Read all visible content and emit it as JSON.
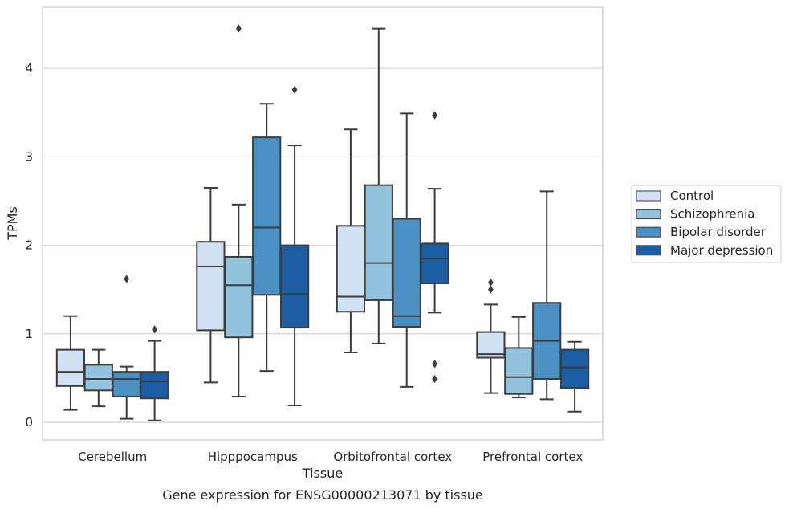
{
  "chart_data": {
    "type": "box",
    "xlabel": "Tissue",
    "ylabel": "TPMs",
    "caption": "Gene expression for ENSG00000213071 by tissue",
    "ylim": [
      -0.2,
      4.7
    ],
    "yticks": [
      0,
      1,
      2,
      3,
      4
    ],
    "grid": "horizontal",
    "legend_position": "right",
    "categories": [
      "Cerebellum",
      "Hipppocampus",
      "Orbitofrontal cortex",
      "Prefrontal cortex"
    ],
    "series": [
      {
        "name": "Control",
        "color": "#cfe1f2",
        "boxes": [
          {
            "whisker_low": 0.14,
            "q1": 0.41,
            "median": 0.57,
            "q3": 0.82,
            "whisker_high": 1.2,
            "outliers": []
          },
          {
            "whisker_low": 0.45,
            "q1": 1.04,
            "median": 1.76,
            "q3": 2.04,
            "whisker_high": 2.65,
            "outliers": []
          },
          {
            "whisker_low": 0.79,
            "q1": 1.25,
            "median": 1.42,
            "q3": 2.22,
            "whisker_high": 3.31,
            "outliers": []
          },
          {
            "whisker_low": 0.33,
            "q1": 0.73,
            "median": 0.77,
            "q3": 1.02,
            "whisker_high": 1.33,
            "outliers": [
              1.5,
              1.58
            ]
          }
        ]
      },
      {
        "name": "Schizophrenia",
        "color": "#93c4de",
        "boxes": [
          {
            "whisker_low": 0.18,
            "q1": 0.36,
            "median": 0.49,
            "q3": 0.65,
            "whisker_high": 0.82,
            "outliers": []
          },
          {
            "whisker_low": 0.29,
            "q1": 0.96,
            "median": 1.55,
            "q3": 1.87,
            "whisker_high": 2.46,
            "outliers": [
              4.45
            ]
          },
          {
            "whisker_low": 0.89,
            "q1": 1.38,
            "median": 1.8,
            "q3": 2.68,
            "whisker_high": 4.45,
            "outliers": []
          },
          {
            "whisker_low": 0.28,
            "q1": 0.32,
            "median": 0.51,
            "q3": 0.84,
            "whisker_high": 1.19,
            "outliers": []
          }
        ]
      },
      {
        "name": "Bipolar disorder",
        "color": "#4a90c2",
        "boxes": [
          {
            "whisker_low": 0.04,
            "q1": 0.29,
            "median": 0.49,
            "q3": 0.57,
            "whisker_high": 0.63,
            "outliers": [
              1.62
            ]
          },
          {
            "whisker_low": 0.58,
            "q1": 1.44,
            "median": 2.2,
            "q3": 3.22,
            "whisker_high": 3.6,
            "outliers": []
          },
          {
            "whisker_low": 0.4,
            "q1": 1.08,
            "median": 1.2,
            "q3": 2.3,
            "whisker_high": 3.49,
            "outliers": []
          },
          {
            "whisker_low": 0.26,
            "q1": 0.49,
            "median": 0.92,
            "q3": 1.35,
            "whisker_high": 2.61,
            "outliers": []
          }
        ]
      },
      {
        "name": "Major depression",
        "color": "#1b5ea3",
        "boxes": [
          {
            "whisker_low": 0.02,
            "q1": 0.27,
            "median": 0.46,
            "q3": 0.57,
            "whisker_high": 0.92,
            "outliers": [
              1.05
            ]
          },
          {
            "whisker_low": 0.19,
            "q1": 1.07,
            "median": 1.45,
            "q3": 2.0,
            "whisker_high": 3.13,
            "outliers": [
              3.76
            ]
          },
          {
            "whisker_low": 1.24,
            "q1": 1.57,
            "median": 1.85,
            "q3": 2.02,
            "whisker_high": 2.64,
            "outliers": [
              0.49,
              0.66,
              3.47
            ]
          },
          {
            "whisker_low": 0.12,
            "q1": 0.39,
            "median": 0.62,
            "q3": 0.82,
            "whisker_high": 0.91,
            "outliers": []
          }
        ]
      }
    ]
  }
}
